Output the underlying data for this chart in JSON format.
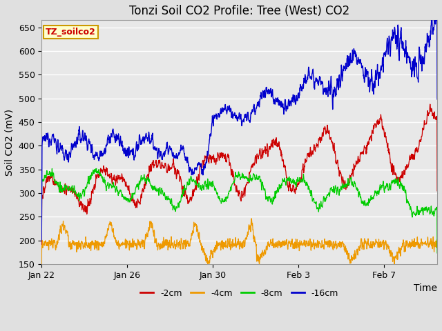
{
  "title": "Tonzi Soil CO2 Profile: Tree (West) CO2",
  "ylabel": "Soil CO2 (mV)",
  "xlabel": "Time",
  "ylim": [
    150,
    665
  ],
  "yticks": [
    150,
    200,
    250,
    300,
    350,
    400,
    450,
    500,
    550,
    600,
    650
  ],
  "xtick_labels": [
    "Jan 22",
    "Jan 26",
    "Jan 30",
    "Feb 3",
    "Feb 7"
  ],
  "xtick_positions": [
    0,
    4,
    8,
    12,
    16
  ],
  "total_days": 18.5,
  "background_color": "#e0e0e0",
  "plot_bg_color": "#e8e8e8",
  "legend_label": "TZ_soilco2",
  "legend_box_color": "#ffffcc",
  "legend_box_border": "#cc9900",
  "series_labels": [
    "-2cm",
    "-4cm",
    "-8cm",
    "-16cm"
  ],
  "series_colors": [
    "#cc0000",
    "#ee9900",
    "#00cc00",
    "#0000cc"
  ],
  "grid_color": "#ffffff",
  "title_fontsize": 12,
  "axis_fontsize": 10,
  "tick_fontsize": 9,
  "seed": 12345
}
